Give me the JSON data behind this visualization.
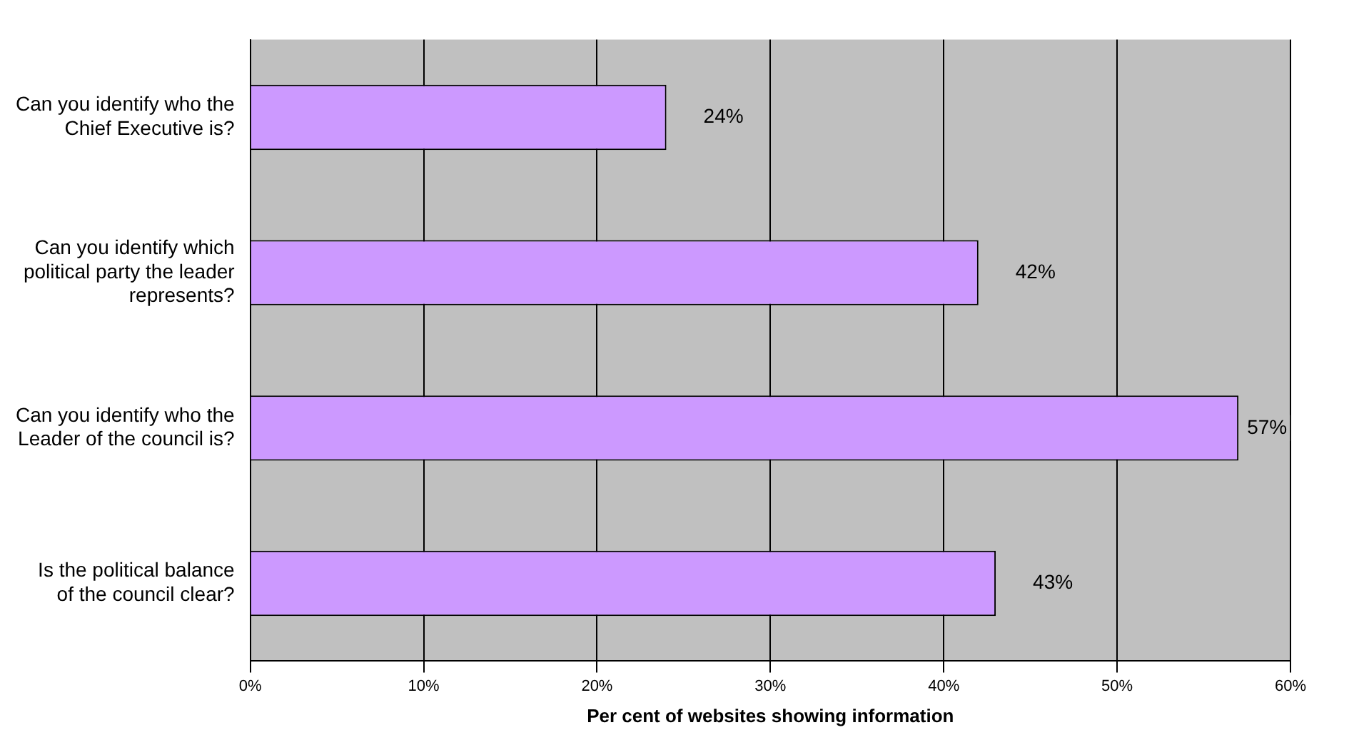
{
  "chart_data": {
    "type": "bar",
    "orientation": "horizontal",
    "xlabel": "Per cent of websites showing information",
    "categories": [
      "Can you identify who the Chief Executive is?",
      "Can you identify which political party the leader represents?",
      "Can you identify who the Leader of the council is?",
      "Is the political balance of the council clear?"
    ],
    "values": [
      24,
      42,
      57,
      43
    ],
    "value_labels": [
      "24%",
      "42%",
      "57%",
      "43%"
    ],
    "color": "#cc99ff",
    "xlim": [
      0,
      60
    ],
    "xticks": [
      {
        "value": 0,
        "label": "0%"
      },
      {
        "value": 10,
        "label": "10%"
      },
      {
        "value": 20,
        "label": "20%"
      },
      {
        "value": 30,
        "label": "30%"
      },
      {
        "value": 40,
        "label": "40%"
      },
      {
        "value": 50,
        "label": "50%"
      },
      {
        "value": 60,
        "label": "60%"
      }
    ],
    "grid": "x",
    "legend": false
  }
}
